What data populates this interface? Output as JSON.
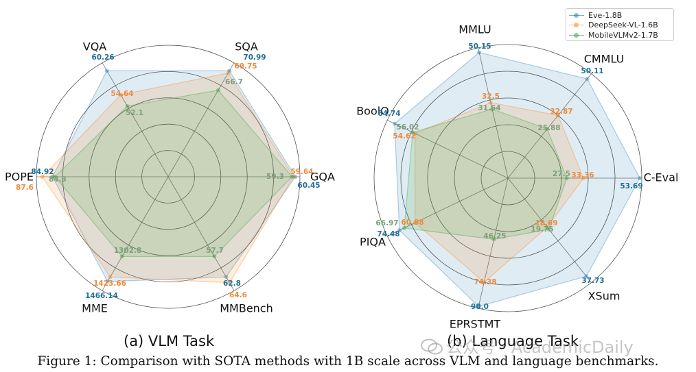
{
  "figure": {
    "caption": "Figure 1: Comparison with SOTA methods with 1B scale across VLM and language benchmarks.",
    "watermark": "公众号 · AcademicDaily"
  },
  "legend": {
    "items": [
      {
        "name": "Eve-1.8B",
        "color": "#1f77b4"
      },
      {
        "name": "DeepSeek-VL-1.6B",
        "color": "#ff7f0e"
      },
      {
        "name": "MobileVLMv2-1.7B",
        "color": "#2ca02c"
      }
    ]
  },
  "chart_data": [
    {
      "type": "radar",
      "title": "(a) VLM Task",
      "axes": [
        "GQA",
        "SQA",
        "VQA",
        "POPE",
        "MME",
        "MMBench"
      ],
      "series": [
        {
          "name": "Eve-1.8B",
          "values": [
            60.45,
            70.99,
            60.26,
            84.92,
            1466.14,
            62.8
          ],
          "labels": [
            "60.45",
            "70.99",
            "60.26",
            "84.92",
            "1466.14",
            "62.8"
          ]
        },
        {
          "name": "DeepSeek-VL-1.6B",
          "values": [
            59.64,
            69.75,
            54.64,
            87.6,
            1423.66,
            64.6
          ],
          "labels": [
            "59.64",
            "69.75",
            "54.64",
            "87.6",
            "1423.66",
            "64.6"
          ]
        },
        {
          "name": "MobileVLMv2-1.7B",
          "values": [
            59.3,
            66.7,
            52.1,
            84.3,
            1302.8,
            57.7
          ],
          "labels": [
            "59.3",
            "66.7",
            "52.1",
            "84.3",
            "1302.8",
            "57.7"
          ]
        }
      ],
      "normalized_radius": [
        [
          0.965,
          0.93,
          0.93,
          0.878,
          0.92,
          0.88
        ],
        [
          0.95,
          0.91,
          0.72,
          0.955,
          0.88,
          0.93
        ],
        [
          0.94,
          0.76,
          0.62,
          0.86,
          0.7,
          0.7
        ]
      ]
    },
    {
      "type": "radar",
      "title": "(b) Language Task",
      "axes": [
        "C-Eval",
        "CMMLU",
        "MMLU",
        "BoolQ",
        "PIQA",
        "EPRSTMT",
        "XSum"
      ],
      "series": [
        {
          "name": "Eve-1.8B",
          "values": [
            53.69,
            50.11,
            50.15,
            64.74,
            74.48,
            90.0,
            37.73
          ],
          "labels": [
            "53.69",
            "50.11",
            "50.15",
            "64.74",
            "74.48",
            "90.0",
            "37.73"
          ]
        },
        {
          "name": "DeepSeek-VL-1.6B",
          "values": [
            33.36,
            32.87,
            32.5,
            54.62,
            60.88,
            74.38,
            18.69
          ],
          "labels": [
            "33.36",
            "32.87",
            "32.5",
            "54.62",
            "60.88",
            "74.38",
            "18.69"
          ]
        },
        {
          "name": "MobileVLMv2-1.7B",
          "values": [
            27.5,
            25.88,
            31.64,
            56.02,
            66.97,
            46.25,
            19.75
          ],
          "labels": [
            "27.5",
            "25.88",
            "31.64",
            "56.02",
            "66.97",
            "46.25",
            "19.75"
          ]
        }
      ],
      "normalized_radius": [
        [
          0.985,
          0.95,
          0.965,
          0.94,
          0.9,
          0.985,
          0.94
        ],
        [
          0.565,
          0.6,
          0.58,
          0.77,
          0.77,
          0.8,
          0.47
        ],
        [
          0.44,
          0.47,
          0.53,
          0.79,
          0.86,
          0.47,
          0.49
        ]
      ]
    }
  ]
}
